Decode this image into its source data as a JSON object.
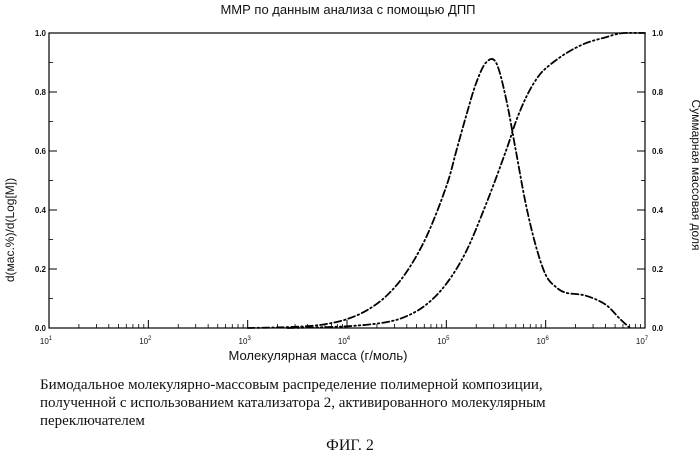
{
  "chart_data": {
    "type": "line",
    "title": "ММР по данным анализа с помощью ДПП",
    "xlabel": "Молекулярная масса (г/моль)",
    "ylabel_left": "d(мас.%)/d(Log[M])",
    "ylabel_right": "Суммарная массовая доля",
    "x_scale": "log",
    "xlim_log10": [
      1,
      7
    ],
    "x_tick_base": "10",
    "x_tick_exponents": [
      "1",
      "2",
      "3",
      "4",
      "5",
      "6",
      "7"
    ],
    "ylim": [
      0,
      1
    ],
    "y_ticks": [
      "0.0",
      "0.2",
      "0.4",
      "0.6",
      "0.8",
      "1.0"
    ],
    "grid": false,
    "series": [
      {
        "name": "d(мас.%)/d(Log[M])",
        "axis": "left",
        "style": "dash-dot",
        "log10_x": [
          3.0,
          3.3,
          3.6,
          3.8,
          4.0,
          4.2,
          4.4,
          4.6,
          4.8,
          5.0,
          5.1,
          5.2,
          5.3,
          5.4,
          5.5,
          5.6,
          5.7,
          5.8,
          5.9,
          6.0,
          6.1,
          6.2,
          6.4,
          6.6,
          6.75,
          6.85
        ],
        "values": [
          0.0,
          0.002,
          0.006,
          0.014,
          0.03,
          0.06,
          0.11,
          0.19,
          0.31,
          0.48,
          0.6,
          0.72,
          0.83,
          0.9,
          0.9,
          0.78,
          0.6,
          0.42,
          0.28,
          0.18,
          0.14,
          0.12,
          0.11,
          0.08,
          0.03,
          0.0
        ]
      },
      {
        "name": "Суммарная массовая доля",
        "axis": "right",
        "style": "dash-dot-dot",
        "log10_x": [
          3.4,
          3.8,
          4.1,
          4.4,
          4.6,
          4.8,
          5.0,
          5.2,
          5.4,
          5.6,
          5.7,
          5.8,
          5.9,
          6.0,
          6.2,
          6.4,
          6.6,
          6.7,
          6.8,
          7.0
        ],
        "values": [
          0.0,
          0.003,
          0.008,
          0.02,
          0.04,
          0.08,
          0.15,
          0.26,
          0.42,
          0.6,
          0.7,
          0.78,
          0.84,
          0.88,
          0.93,
          0.965,
          0.985,
          0.995,
          1.0,
          1.0
        ]
      }
    ]
  },
  "caption_lines": [
    "Бимодальное молекулярно-массовым распределение полимерной композиции,",
    "полученной с использованием катализатора 2, активированного молекулярным",
    "переключателем"
  ],
  "figure_label": "ФИГ. 2"
}
